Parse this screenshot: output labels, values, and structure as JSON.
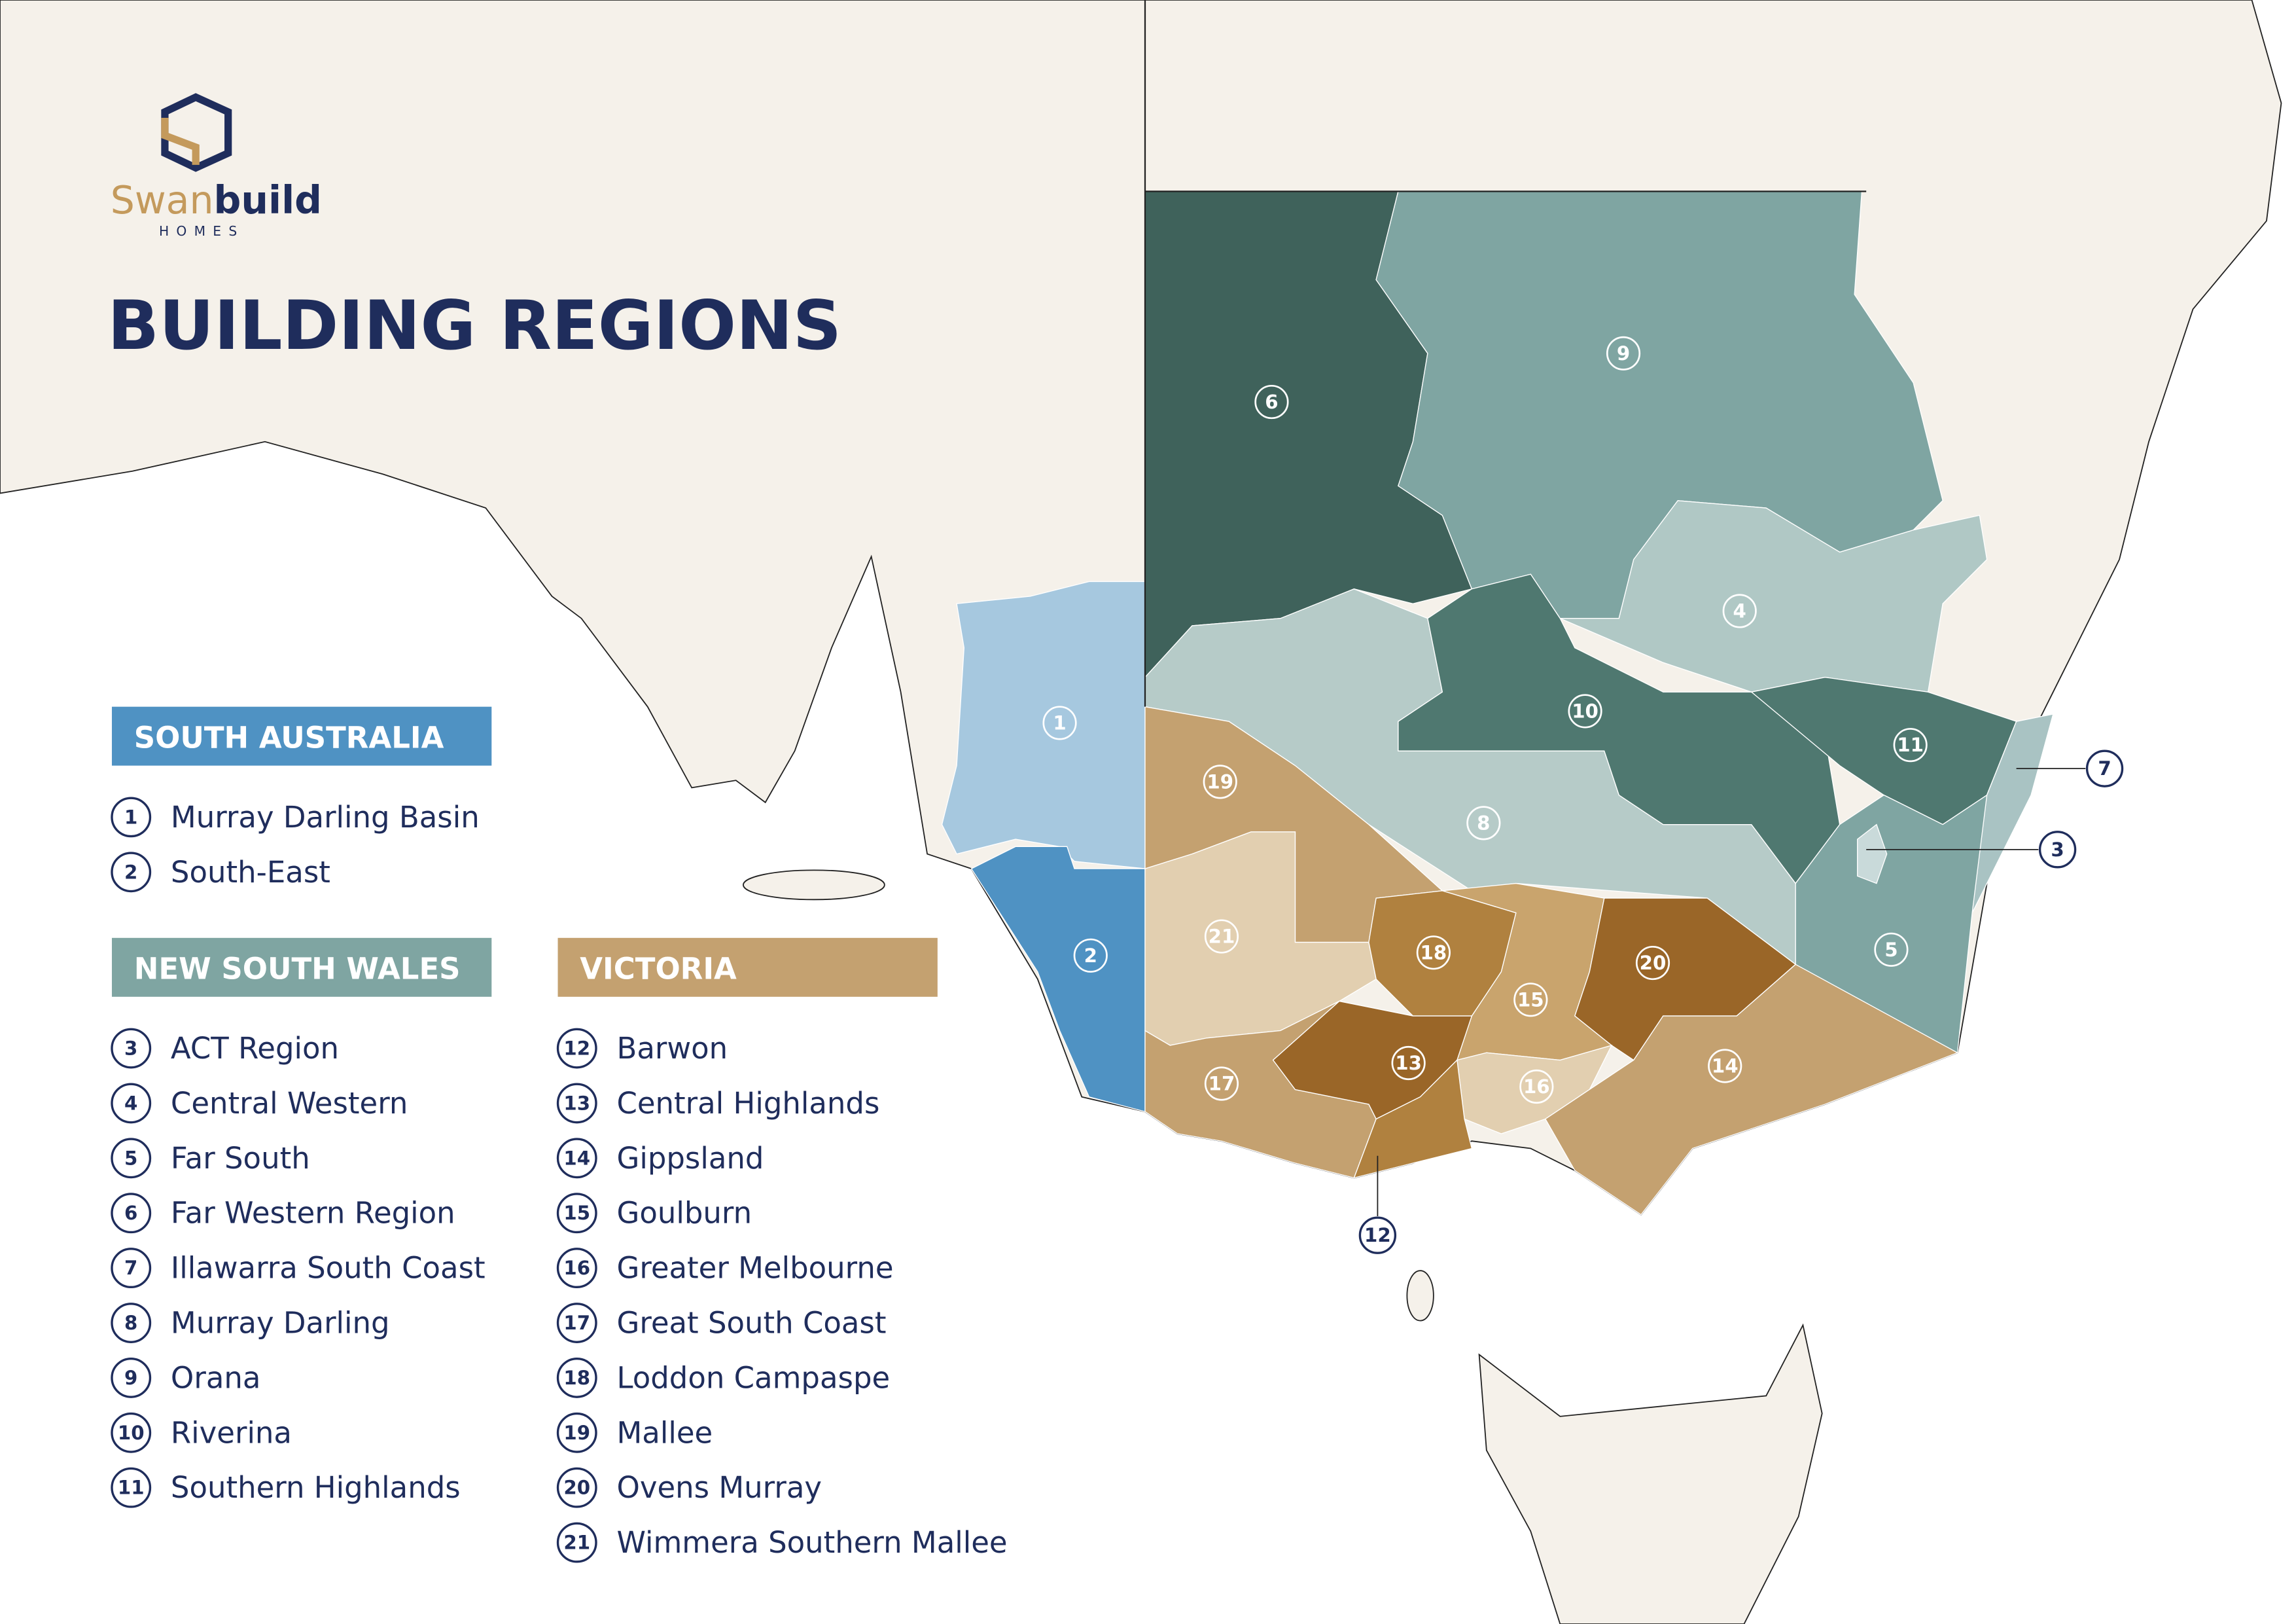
{
  "logo": {
    "wordmark": [
      "Swan",
      "build"
    ],
    "tagline": "HOMES"
  },
  "title": "BUILDING REGIONS",
  "sections": [
    {
      "heading": "SOUTH AUSTRALIA",
      "color": "#4f92c3",
      "items": [
        {
          "number": 1,
          "name": "Murray Darling Basin",
          "color": "#a6c8df"
        },
        {
          "number": 2,
          "name": "South-East",
          "color": "#4f92c3"
        }
      ]
    },
    {
      "heading": "NEW SOUTH WALES",
      "color": "#7fa5a2",
      "items": [
        {
          "number": 3,
          "name": "ACT Region",
          "color": "#c9dada"
        },
        {
          "number": 4,
          "name": "Central Western",
          "color": "#b0c8c5"
        },
        {
          "number": 5,
          "name": "Far South",
          "color": "#7fa5a2"
        },
        {
          "number": 6,
          "name": "Far Western Region",
          "color": "#3f625b"
        },
        {
          "number": 7,
          "name": "Illawarra South Coast",
          "color": "#a9c3c3"
        },
        {
          "number": 8,
          "name": "Murray Darling",
          "color": "#b6cbc8"
        },
        {
          "number": 9,
          "name": "Orana",
          "color": "#7fa5a2"
        },
        {
          "number": 10,
          "name": "Riverina",
          "color": "#4f7870"
        },
        {
          "number": 11,
          "name": "Southern Highlands",
          "color": "#4f7870"
        }
      ]
    },
    {
      "heading": "VICTORIA",
      "color": "#c4a170",
      "items": [
        {
          "number": 12,
          "name": "Barwon",
          "color": "#b0813f"
        },
        {
          "number": 13,
          "name": "Central Highlands",
          "color": "#9a6628"
        },
        {
          "number": 14,
          "name": "Gippsland",
          "color": "#c4a170"
        },
        {
          "number": 15,
          "name": "Goulburn",
          "color": "#c9a46d"
        },
        {
          "number": 16,
          "name": "Greater Melbourne",
          "color": "#e2cfb0"
        },
        {
          "number": 17,
          "name": "Great South Coast",
          "color": "#c4a170"
        },
        {
          "number": 18,
          "name": "Loddon Campaspe",
          "color": "#b0813f"
        },
        {
          "number": 19,
          "name": "Mallee",
          "color": "#c4a170"
        },
        {
          "number": 20,
          "name": "Ovens Murray",
          "color": "#9a6628"
        },
        {
          "number": 21,
          "name": "Wimmera Southern Mallee",
          "color": "#e2cfb0"
        }
      ]
    }
  ]
}
